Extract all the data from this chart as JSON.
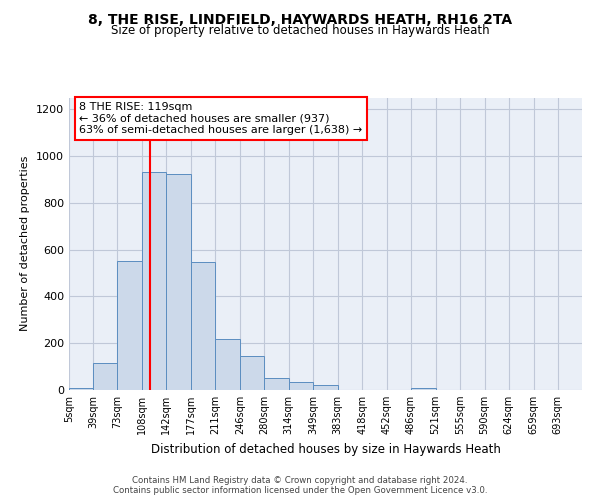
{
  "title_line1": "8, THE RISE, LINDFIELD, HAYWARDS HEATH, RH16 2TA",
  "title_line2": "Size of property relative to detached houses in Haywards Heath",
  "xlabel": "Distribution of detached houses by size in Haywards Heath",
  "ylabel": "Number of detached properties",
  "footer_line1": "Contains HM Land Registry data © Crown copyright and database right 2024.",
  "footer_line2": "Contains public sector information licensed under the Open Government Licence v3.0.",
  "bar_color": "#ccd9ea",
  "bar_edge_color": "#5b8dc0",
  "grid_color": "#c0c8d8",
  "annotation_box_text": "8 THE RISE: 119sqm\n← 36% of detached houses are smaller (937)\n63% of semi-detached houses are larger (1,638) →",
  "property_line_x": 119,
  "categories": [
    "5sqm",
    "39sqm",
    "73sqm",
    "108sqm",
    "142sqm",
    "177sqm",
    "211sqm",
    "246sqm",
    "280sqm",
    "314sqm",
    "349sqm",
    "383sqm",
    "418sqm",
    "452sqm",
    "486sqm",
    "521sqm",
    "555sqm",
    "590sqm",
    "624sqm",
    "659sqm",
    "693sqm"
  ],
  "bin_edges": [
    5,
    39,
    73,
    108,
    142,
    177,
    211,
    246,
    280,
    314,
    349,
    383,
    418,
    452,
    486,
    521,
    555,
    590,
    624,
    659,
    693,
    727
  ],
  "bar_heights": [
    8,
    115,
    550,
    930,
    925,
    545,
    220,
    145,
    52,
    33,
    22,
    0,
    0,
    0,
    10,
    0,
    0,
    0,
    0,
    0,
    0
  ],
  "ylim": [
    0,
    1250
  ],
  "yticks": [
    0,
    200,
    400,
    600,
    800,
    1000,
    1200
  ],
  "background_color": "#eaeff7"
}
